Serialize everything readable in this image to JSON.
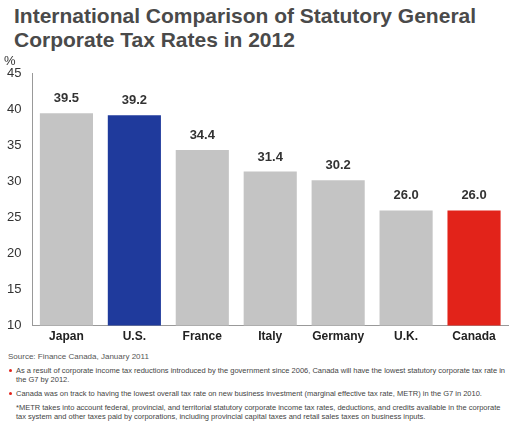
{
  "chart_data": {
    "type": "bar",
    "title": "International Comparison of Statutory General Corporate Tax Rates in 2012",
    "y_label": "%",
    "categories": [
      "Japan",
      "U.S.",
      "France",
      "Italy",
      "Germany",
      "U.K.",
      "Canada"
    ],
    "values": [
      39.5,
      39.2,
      34.4,
      31.4,
      30.2,
      26.0,
      26.0
    ],
    "value_labels": [
      "39.5",
      "39.2",
      "34.4",
      "31.4",
      "30.2",
      "26.0",
      "26.0"
    ],
    "colors": [
      "#c4c4c4",
      "#1f3a9c",
      "#c4c4c4",
      "#c4c4c4",
      "#c4c4c4",
      "#c4c4c4",
      "#e2231a"
    ],
    "ylim": [
      10,
      45
    ],
    "yticks": [
      10,
      15,
      20,
      25,
      30,
      35,
      40,
      45
    ],
    "grid": false,
    "data_labels": true,
    "source": "Source: Finance Canada, January 2011",
    "notes": [
      "As a result of corporate income tax reductions introduced by the government since 2006, Canada will have the lowest statutory corporate tax rate in the G7 by 2012.",
      "Canada was on track to having the lowest overall tax rate on new business investment (marginal effective tax rate, METR) in the G7 in 2010.",
      "*METR takes into account federal, provincial, and territorial statutory corporate income tax rates, deductions, and credits available in the corporate tax system and other taxes paid by corporations, including provincial capital taxes and retail sales taxes on business inputs."
    ]
  }
}
